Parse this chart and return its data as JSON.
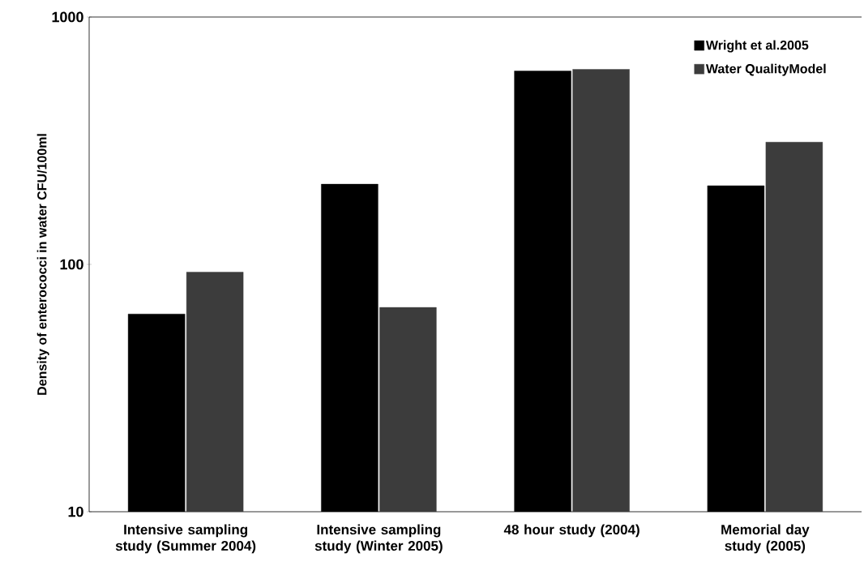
{
  "chart_data": {
    "type": "bar",
    "ylabel": "Density of enterococci in water CFU/100ml",
    "categories": [
      "Intensive sampling study (Summer 2004)",
      "Intensive sampling study (Winter 2005)",
      "48 hour study (2004)",
      "Memorial day study (2005)"
    ],
    "series": [
      {
        "name": "Wright et al.2005",
        "color": "#000000",
        "values": [
          63,
          211,
          605,
          208
        ]
      },
      {
        "name": "Water QualityModel",
        "color": "#3c3c3c",
        "values": [
          93,
          67,
          615,
          312
        ]
      }
    ],
    "log": "y",
    "ylim": [
      10,
      1000
    ],
    "yticks": [
      10,
      100,
      1000
    ],
    "grid": false,
    "legend": "top right"
  }
}
